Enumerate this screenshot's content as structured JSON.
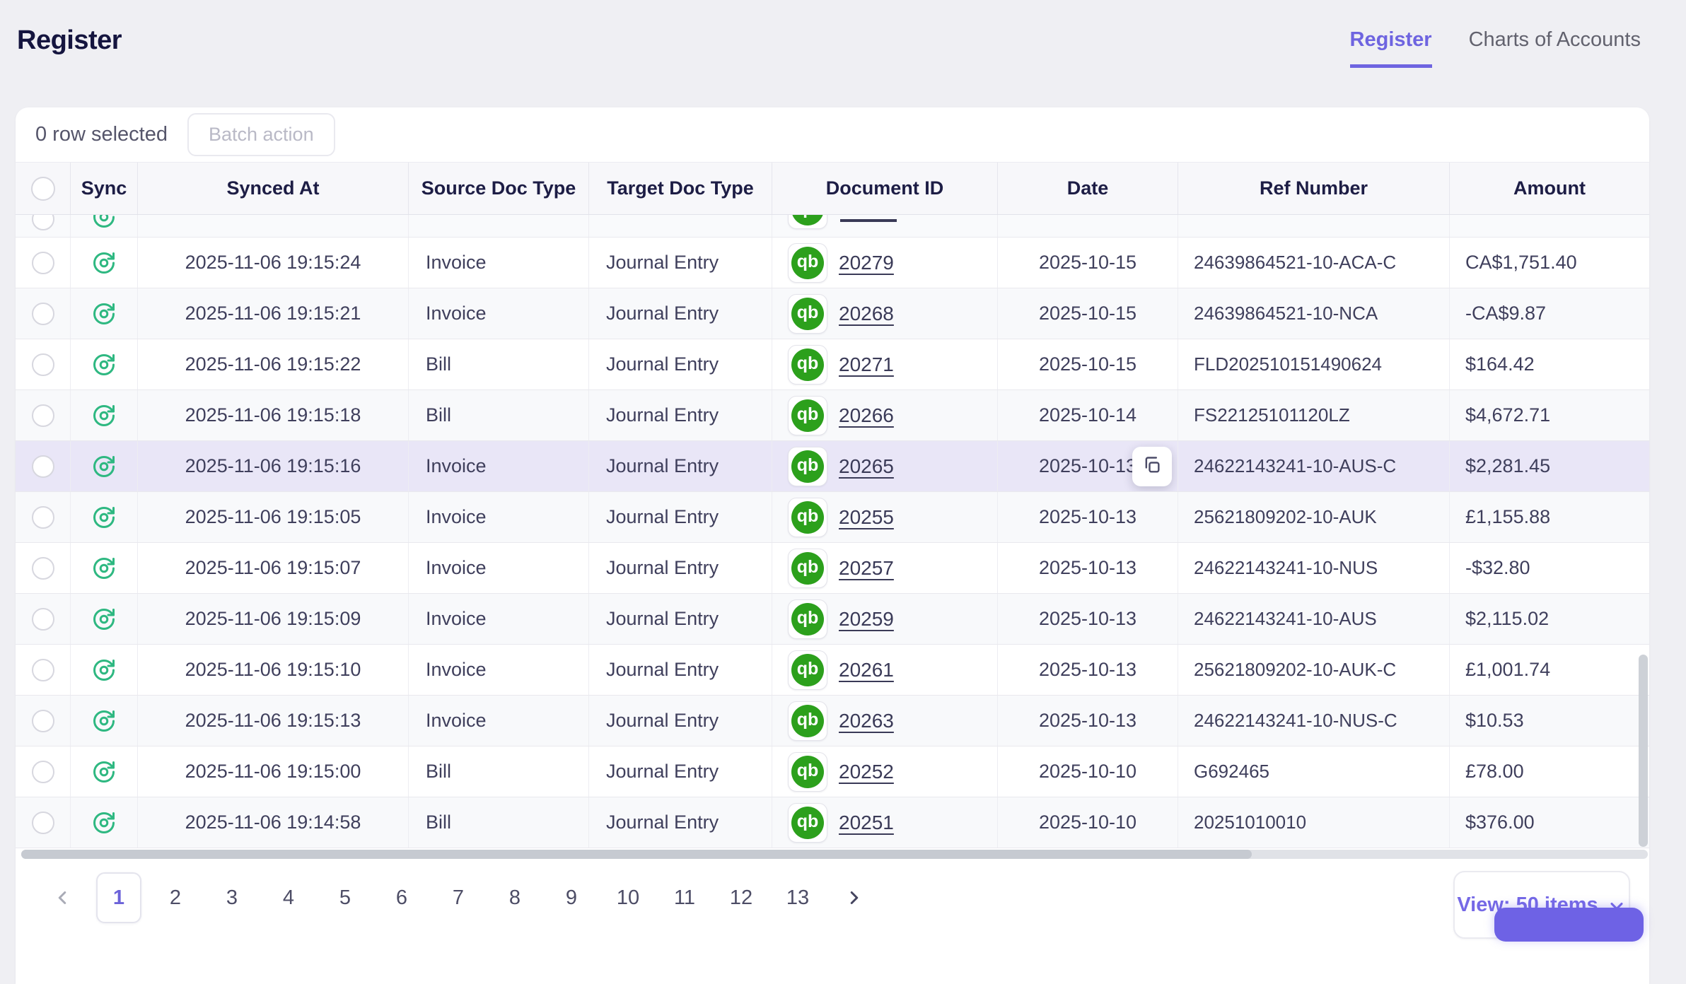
{
  "page": {
    "title": "Register"
  },
  "tabs": [
    {
      "label": "Register",
      "active": true
    },
    {
      "label": "Charts of Accounts",
      "active": false
    }
  ],
  "toolbar": {
    "selection_text": "0 row selected",
    "batch_button_label": "Batch action"
  },
  "icons": {
    "quickbooks_glyph": "qb"
  },
  "colors": {
    "accent_purple": "#6e64e0",
    "quickbooks_green": "#2ca01c",
    "sync_green": "#2eb881",
    "highlight_row": "#e9e6f7"
  },
  "table": {
    "columns": {
      "sync": "Sync",
      "synced_at": "Synced At",
      "source_doc_type": "Source Doc Type",
      "target_doc_type": "Target Doc Type",
      "document_id": "Document ID",
      "date": "Date",
      "ref_number": "Ref Number",
      "amount": "Amount"
    },
    "partial_row_visible": true,
    "rows": [
      {
        "synced_at": "2025-11-06 19:15:24",
        "source_doc_type": "Invoice",
        "target_doc_type": "Journal Entry",
        "document_id": "20279",
        "date": "2025-10-15",
        "ref_number": "24639864521-10-ACA-C",
        "amount": "CA$1,751.40",
        "shaded": false,
        "highlighted": false,
        "copy_button": false
      },
      {
        "synced_at": "2025-11-06 19:15:21",
        "source_doc_type": "Invoice",
        "target_doc_type": "Journal Entry",
        "document_id": "20268",
        "date": "2025-10-15",
        "ref_number": "24639864521-10-NCA",
        "amount": "-CA$9.87",
        "shaded": true,
        "highlighted": false,
        "copy_button": false
      },
      {
        "synced_at": "2025-11-06 19:15:22",
        "source_doc_type": "Bill",
        "target_doc_type": "Journal Entry",
        "document_id": "20271",
        "date": "2025-10-15",
        "ref_number": "FLD202510151490624",
        "amount": "$164.42",
        "shaded": false,
        "highlighted": false,
        "copy_button": false
      },
      {
        "synced_at": "2025-11-06 19:15:18",
        "source_doc_type": "Bill",
        "target_doc_type": "Journal Entry",
        "document_id": "20266",
        "date": "2025-10-14",
        "ref_number": "FS22125101120LZ",
        "amount": "$4,672.71",
        "shaded": true,
        "highlighted": false,
        "copy_button": false
      },
      {
        "synced_at": "2025-11-06 19:15:16",
        "source_doc_type": "Invoice",
        "target_doc_type": "Journal Entry",
        "document_id": "20265",
        "date": "2025-10-13",
        "ref_number": "24622143241-10-AUS-C",
        "amount": "$2,281.45",
        "shaded": false,
        "highlighted": true,
        "copy_button": true
      },
      {
        "synced_at": "2025-11-06 19:15:05",
        "source_doc_type": "Invoice",
        "target_doc_type": "Journal Entry",
        "document_id": "20255",
        "date": "2025-10-13",
        "ref_number": "25621809202-10-AUK",
        "amount": "£1,155.88",
        "shaded": true,
        "highlighted": false,
        "copy_button": false
      },
      {
        "synced_at": "2025-11-06 19:15:07",
        "source_doc_type": "Invoice",
        "target_doc_type": "Journal Entry",
        "document_id": "20257",
        "date": "2025-10-13",
        "ref_number": "24622143241-10-NUS",
        "amount": "-$32.80",
        "shaded": false,
        "highlighted": false,
        "copy_button": false
      },
      {
        "synced_at": "2025-11-06 19:15:09",
        "source_doc_type": "Invoice",
        "target_doc_type": "Journal Entry",
        "document_id": "20259",
        "date": "2025-10-13",
        "ref_number": "24622143241-10-AUS",
        "amount": "$2,115.02",
        "shaded": true,
        "highlighted": false,
        "copy_button": false
      },
      {
        "synced_at": "2025-11-06 19:15:10",
        "source_doc_type": "Invoice",
        "target_doc_type": "Journal Entry",
        "document_id": "20261",
        "date": "2025-10-13",
        "ref_number": "25621809202-10-AUK-C",
        "amount": "£1,001.74",
        "shaded": false,
        "highlighted": false,
        "copy_button": false
      },
      {
        "synced_at": "2025-11-06 19:15:13",
        "source_doc_type": "Invoice",
        "target_doc_type": "Journal Entry",
        "document_id": "20263",
        "date": "2025-10-13",
        "ref_number": "24622143241-10-NUS-C",
        "amount": "$10.53",
        "shaded": true,
        "highlighted": false,
        "copy_button": false
      },
      {
        "synced_at": "2025-11-06 19:15:00",
        "source_doc_type": "Bill",
        "target_doc_type": "Journal Entry",
        "document_id": "20252",
        "date": "2025-10-10",
        "ref_number": "G692465",
        "amount": "£78.00",
        "shaded": false,
        "highlighted": false,
        "copy_button": false
      },
      {
        "synced_at": "2025-11-06 19:14:58",
        "source_doc_type": "Bill",
        "target_doc_type": "Journal Entry",
        "document_id": "20251",
        "date": "2025-10-10",
        "ref_number": "20251010010",
        "amount": "$376.00",
        "shaded": true,
        "highlighted": false,
        "copy_button": false
      }
    ]
  },
  "pagination": {
    "pages": [
      "1",
      "2",
      "3",
      "4",
      "5",
      "6",
      "7",
      "8",
      "9",
      "10",
      "11",
      "12",
      "13"
    ],
    "active_page": "1"
  },
  "view_dropdown": {
    "label": "View: 50 items"
  }
}
